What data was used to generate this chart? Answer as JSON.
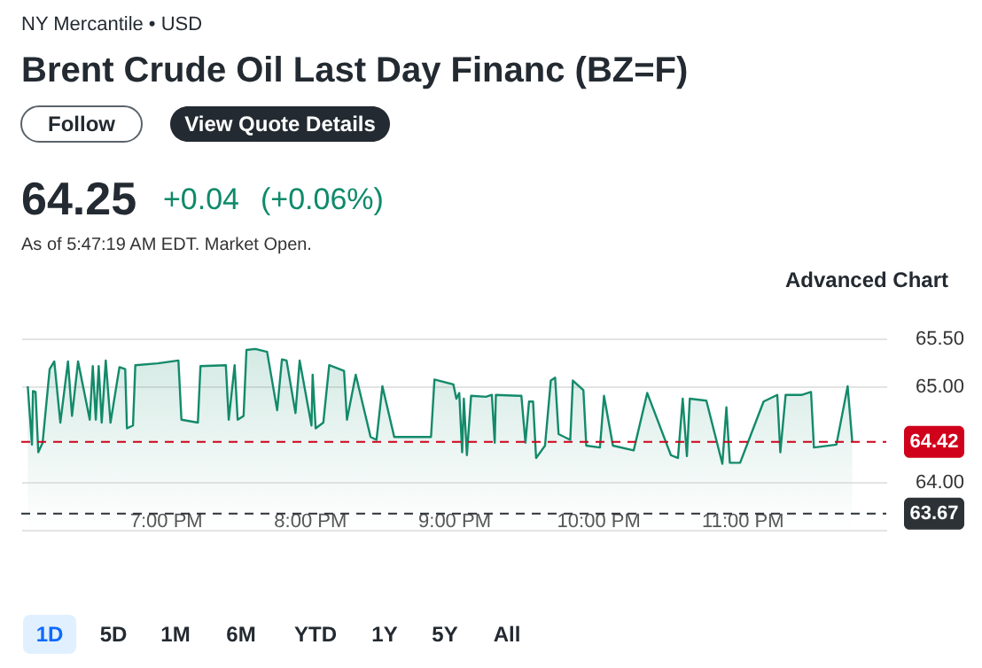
{
  "chart_data": {
    "type": "area",
    "title": "Brent Crude Oil Last Day Financ (BZ=F)",
    "subtitle": "NY Mercantile • USD",
    "annotations": [
      "Follow",
      "View Quote Details",
      "64.25",
      "+0.04",
      "(+0.06%)",
      "As of 5:47:19 AM EDT. Market Open.",
      "Advanced Chart",
      "1D",
      "5D",
      "1M",
      "6M",
      "YTD",
      "1Y",
      "5Y",
      "All"
    ],
    "series": [
      {
        "color": "#138a6a",
        "x": [
          18.045,
          18.074,
          18.081,
          18.099,
          18.118,
          18.148,
          18.197,
          18.229,
          18.271,
          18.324,
          18.352,
          18.394,
          18.475,
          18.496,
          18.517,
          18.537,
          18.558,
          18.586,
          18.619,
          18.681,
          18.721,
          18.733,
          18.775,
          18.791,
          18.947,
          19.09,
          19.111,
          19.225,
          19.243,
          19.419,
          19.439,
          19.48,
          19.501,
          19.542,
          19.562,
          19.624,
          19.705,
          19.775,
          19.808,
          19.84,
          19.902,
          19.931,
          20.013,
          20.021,
          20.042,
          20.095,
          20.136,
          20.239,
          20.259,
          20.32,
          20.423,
          20.464,
          20.505,
          20.587,
          20.842,
          20.866,
          20.997,
          21.018,
          21.038,
          21.058,
          21.07,
          21.091,
          21.12,
          21.223,
          21.264,
          21.284,
          21.292,
          21.448,
          21.469,
          21.497,
          21.522,
          21.55,
          21.571,
          21.633,
          21.673,
          21.703,
          21.727,
          21.808,
          21.826,
          21.899,
          21.919,
          22.014,
          22.042,
          22.104,
          22.248,
          22.342,
          22.506,
          22.555,
          22.588,
          22.617,
          22.637,
          22.752,
          22.863,
          22.891,
          22.915,
          22.986,
          23.149,
          23.244,
          23.265,
          23.302,
          23.416,
          23.478,
          23.498,
          23.654,
          23.732,
          23.764
        ],
        "values": [
          65.0,
          64.39,
          64.95,
          64.94,
          64.31,
          64.41,
          65.18,
          65.26,
          64.62,
          65.26,
          64.69,
          65.26,
          64.65,
          65.21,
          64.65,
          65.21,
          64.62,
          65.27,
          64.62,
          65.2,
          65.18,
          64.56,
          64.59,
          65.22,
          65.24,
          65.27,
          64.65,
          64.62,
          65.21,
          65.22,
          64.65,
          65.22,
          64.65,
          64.69,
          65.38,
          65.39,
          65.36,
          64.75,
          65.28,
          65.27,
          64.72,
          65.27,
          64.59,
          65.12,
          64.56,
          64.62,
          65.22,
          65.16,
          64.65,
          65.12,
          64.47,
          64.44,
          65.0,
          64.47,
          64.47,
          65.07,
          65.02,
          64.87,
          64.93,
          64.31,
          64.87,
          64.28,
          64.9,
          64.89,
          64.91,
          64.41,
          64.91,
          64.9,
          64.9,
          64.41,
          64.84,
          64.84,
          64.25,
          64.38,
          65.06,
          65.09,
          64.5,
          64.44,
          65.06,
          64.96,
          64.38,
          64.36,
          64.9,
          64.38,
          64.33,
          64.93,
          64.28,
          64.25,
          64.87,
          64.27,
          64.87,
          64.85,
          64.19,
          64.78,
          64.2,
          64.2,
          64.84,
          64.91,
          64.31,
          64.91,
          64.91,
          64.94,
          64.36,
          64.39,
          65.0,
          64.42
        ]
      }
    ],
    "xlim": [
      18,
      24
    ],
    "xticks": [
      {
        "value": 19,
        "label": "7:00 PM"
      },
      {
        "value": 20,
        "label": "8:00 PM"
      },
      {
        "value": 21,
        "label": "9:00 PM"
      },
      {
        "value": 22,
        "label": "10:00 PM"
      },
      {
        "value": 23,
        "label": "11:00 PM"
      }
    ],
    "ylim": [
      63.5,
      65.5
    ],
    "yticks": [
      {
        "value": 65.5,
        "label": "65.50"
      },
      {
        "value": 65,
        "label": "65.00"
      },
      {
        "value": 64,
        "label": "64.00"
      },
      {
        "value": 63.5,
        "label": null
      }
    ],
    "ref_lines": [
      {
        "axis": "y",
        "value": 64.42,
        "label": "64.42",
        "color": "#d0021b",
        "line_style": "dashed"
      },
      {
        "axis": "y",
        "value": 63.67,
        "label": "63.67",
        "color": "#2c3236",
        "line_style": "dashed"
      }
    ],
    "grid": "y"
  }
}
